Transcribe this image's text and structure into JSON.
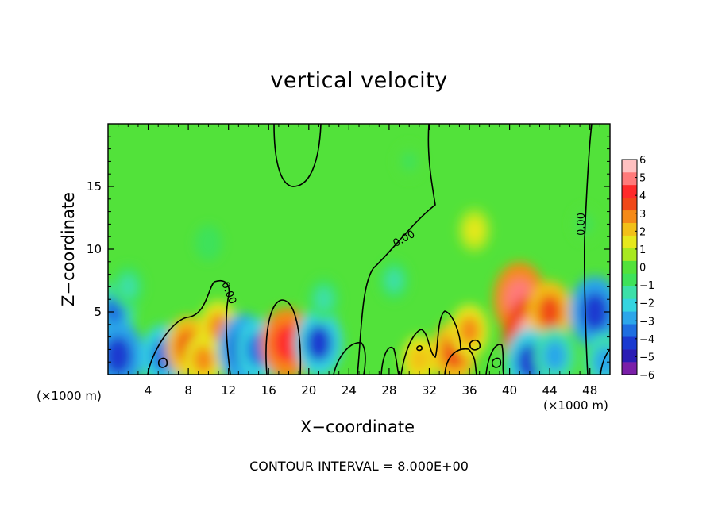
{
  "chart_data": {
    "type": "heatmap",
    "title": "vertical velocity",
    "xlabel": "X−coordinate",
    "ylabel": "Z−coordinate",
    "x_unit_left": "(×1000 m)",
    "x_unit_right": "(×1000 m)",
    "footnote": "CONTOUR INTERVAL = 8.000E+00",
    "xlim": [
      0,
      50
    ],
    "ylim": [
      0,
      20
    ],
    "x_ticks": [
      4,
      8,
      12,
      16,
      20,
      24,
      28,
      32,
      36,
      40,
      44,
      48
    ],
    "x_tick_labels": [
      "4",
      "8",
      "12",
      "16",
      "20",
      "24",
      "28",
      "32",
      "36",
      "40",
      "44",
      "48"
    ],
    "y_ticks": [
      5,
      10,
      15
    ],
    "y_tick_labels": [
      "5",
      "10",
      "15"
    ],
    "background_value": 0.2,
    "features": [
      {
        "x": 0.6,
        "z": 5.0,
        "value": -3.2
      },
      {
        "x": 1.0,
        "z": 1.5,
        "value": -4.5
      },
      {
        "x": 2.0,
        "z": 7.0,
        "value": -1.5
      },
      {
        "x": 5.5,
        "z": 1.5,
        "value": -3.5
      },
      {
        "x": 8.0,
        "z": 2.2,
        "value": 3.5
      },
      {
        "x": 9.5,
        "z": 1.2,
        "value": 2.5
      },
      {
        "x": 11.0,
        "z": 3.8,
        "value": 2.5
      },
      {
        "x": 13.5,
        "z": 2.0,
        "value": -4.5
      },
      {
        "x": 15.0,
        "z": 2.0,
        "value": -3.5
      },
      {
        "x": 17.8,
        "z": 2.5,
        "value": 4.5
      },
      {
        "x": 21.0,
        "z": 2.5,
        "value": -4.0
      },
      {
        "x": 21.5,
        "z": 6.0,
        "value": -1.5
      },
      {
        "x": 10.0,
        "z": 10.5,
        "value": -0.8
      },
      {
        "x": 28.5,
        "z": 7.5,
        "value": -1.2
      },
      {
        "x": 31.0,
        "z": 1.2,
        "value": 2.0
      },
      {
        "x": 34.5,
        "z": 1.8,
        "value": 3.5
      },
      {
        "x": 36.5,
        "z": 11.5,
        "value": 1.6
      },
      {
        "x": 36.0,
        "z": 3.5,
        "value": 2.5
      },
      {
        "x": 41.0,
        "z": 6.0,
        "value": 4.8
      },
      {
        "x": 42.5,
        "z": 2.8,
        "value": 6.5
      },
      {
        "x": 44.0,
        "z": 5.0,
        "value": 3.5
      },
      {
        "x": 42.0,
        "z": 1.0,
        "value": -4.0
      },
      {
        "x": 44.5,
        "z": 1.5,
        "value": -3.0
      },
      {
        "x": 48.5,
        "z": 5.0,
        "value": -4.5
      },
      {
        "x": 49.5,
        "z": 1.0,
        "value": -3.0
      },
      {
        "x": 47.5,
        "z": 12.0,
        "value": -0.6
      },
      {
        "x": 30.0,
        "z": 17.0,
        "value": -0.6
      }
    ],
    "contour_labels": [
      {
        "text": "0.00",
        "x": 29.5,
        "z": 10.8,
        "angle": -28
      },
      {
        "text": "0.00",
        "x": 47.2,
        "z": 12.0,
        "angle": -90
      },
      {
        "text": "0.00",
        "x": 12.0,
        "z": 6.5,
        "angle": 68
      }
    ],
    "colorbar": {
      "min": -6,
      "max": 6,
      "labels": [
        "6",
        "5",
        "4",
        "3",
        "2",
        "1",
        "0",
        "−1",
        "−2",
        "−3",
        "−4",
        "−5",
        "−6"
      ],
      "colors": [
        "#7a1fa8",
        "#2a1cb4",
        "#1a3ad0",
        "#1e6ee0",
        "#2ca6ea",
        "#35d4e0",
        "#3ce0a8",
        "#3ee25a",
        "#52e23a",
        "#a8e820",
        "#e6e81c",
        "#f2c018",
        "#f58a18",
        "#f04818",
        "#ff2a2a",
        "#ff7a7a",
        "#ffc0c0"
      ]
    }
  }
}
